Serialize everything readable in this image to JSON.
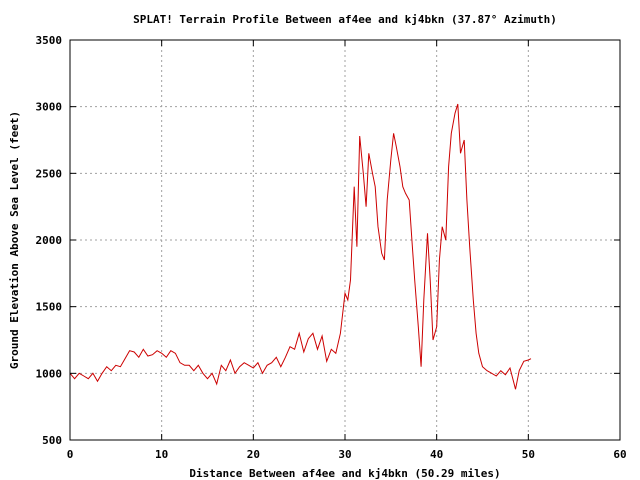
{
  "chart_data": {
    "type": "line",
    "title": "SPLAT! Terrain Profile Between af4ee and kj4bkn (37.87° Azimuth)",
    "xlabel": "Distance Between af4ee and kj4bkn (50.29 miles)",
    "ylabel": "Ground Elevation Above Sea Level (feet)",
    "xlim": [
      0,
      60
    ],
    "ylim": [
      500,
      3500
    ],
    "xticks": [
      "0",
      "10",
      "20",
      "30",
      "40",
      "50",
      "60"
    ],
    "yticks": [
      "500",
      "1000",
      "1500",
      "2000",
      "2500",
      "3000",
      "3500"
    ],
    "grid": true,
    "line_color": "#cc0000",
    "series": [
      {
        "x": [
          0,
          0.5,
          1,
          1.5,
          2,
          2.5,
          3,
          3.5,
          4,
          4.5,
          5,
          5.5,
          6,
          6.5,
          7,
          7.5,
          8,
          8.5,
          9,
          9.5,
          10,
          10.5,
          11,
          11.5,
          12,
          12.5,
          13,
          13.5,
          14,
          14.5,
          15,
          15.5,
          16,
          16.5,
          17,
          17.5,
          18,
          18.5,
          19,
          19.5,
          20,
          20.5,
          21,
          21.5,
          22,
          22.5,
          23,
          23.5,
          24,
          24.5,
          25,
          25.5,
          26,
          26.5,
          27,
          27.5,
          28,
          28.5,
          29,
          29.5,
          30,
          30.3,
          30.6,
          31,
          31.3,
          31.6,
          32,
          32.3,
          32.6,
          33,
          33.3,
          33.6,
          34,
          34.3,
          34.6,
          35,
          35.3,
          35.6,
          36,
          36.3,
          36.6,
          37,
          37.3,
          37.6,
          38,
          38.3,
          38.6,
          39,
          39.3,
          39.6,
          40,
          40.3,
          40.6,
          41,
          41.3,
          41.6,
          42,
          42.3,
          42.6,
          43,
          43.3,
          43.6,
          44,
          44.3,
          44.6,
          45,
          45.5,
          46,
          46.5,
          47,
          47.5,
          48,
          48.3,
          48.6,
          49,
          49.5,
          50,
          50.29
        ],
        "y": [
          1000,
          960,
          1000,
          980,
          960,
          1000,
          940,
          1000,
          1050,
          1020,
          1060,
          1050,
          1110,
          1170,
          1160,
          1120,
          1180,
          1130,
          1140,
          1170,
          1150,
          1120,
          1170,
          1150,
          1080,
          1060,
          1060,
          1020,
          1060,
          1000,
          960,
          1000,
          920,
          1060,
          1020,
          1100,
          1000,
          1050,
          1080,
          1060,
          1040,
          1080,
          1000,
          1060,
          1080,
          1120,
          1050,
          1120,
          1200,
          1180,
          1300,
          1160,
          1260,
          1300,
          1180,
          1280,
          1090,
          1180,
          1150,
          1300,
          1600,
          1550,
          1700,
          2400,
          1950,
          2780,
          2500,
          2250,
          2650,
          2500,
          2400,
          2100,
          1900,
          1850,
          2300,
          2600,
          2800,
          2700,
          2550,
          2400,
          2350,
          2300,
          2000,
          1700,
          1350,
          1050,
          1550,
          2050,
          1700,
          1250,
          1350,
          1850,
          2100,
          2000,
          2550,
          2800,
          2950,
          3020,
          2650,
          2750,
          2300,
          1950,
          1550,
          1300,
          1150,
          1050,
          1020,
          1000,
          980,
          1020,
          990,
          1040,
          960,
          880,
          1020,
          1090,
          1100,
          1110
        ]
      }
    ]
  }
}
